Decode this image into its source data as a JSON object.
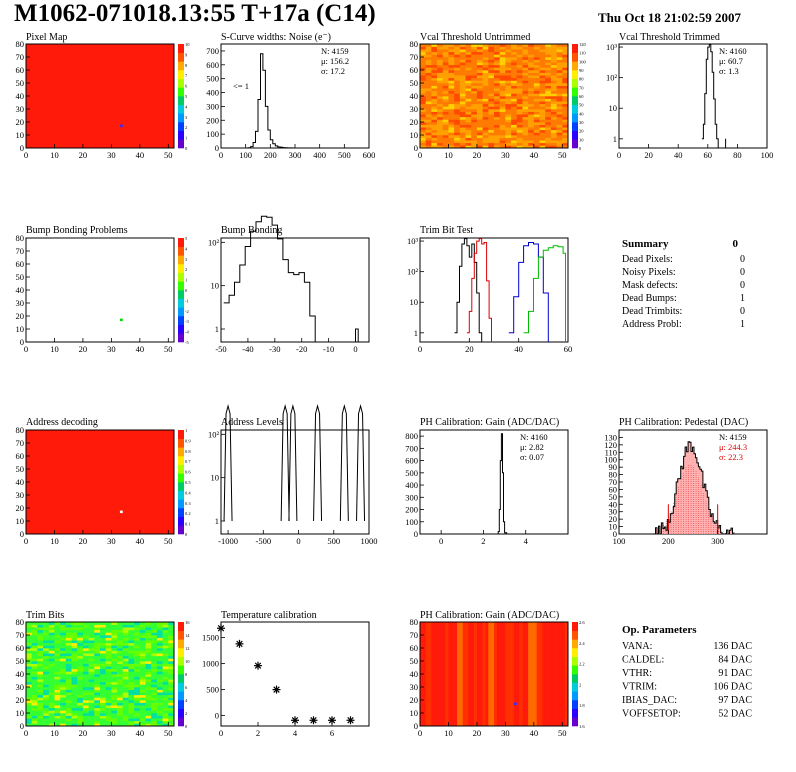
{
  "header": {
    "title": "M1062-071018.13:55 T+17a (C14)",
    "date": "Thu Oct 18 21:02:59 2007"
  },
  "colors": {
    "map_red": "#ff1a0a",
    "hist_black": "#000000",
    "trim_red": "#dd0000",
    "trim_blue": "#0000cc",
    "trim_green": "#00bb00",
    "stats_red": "#dd0000",
    "pedestal_fill": "#ffb0b0"
  },
  "summary": {
    "title": "Summary",
    "value": "0",
    "rows": [
      {
        "label": "Dead Pixels:",
        "value": "0"
      },
      {
        "label": "Noisy Pixels:",
        "value": "0"
      },
      {
        "label": "Mask defects:",
        "value": "0"
      },
      {
        "label": "Dead Bumps:",
        "value": "1"
      },
      {
        "label": "Dead Trimbits:",
        "value": "0"
      },
      {
        "label": "Address Probl:",
        "value": "1"
      }
    ]
  },
  "op_parameters": {
    "title": "Op. Parameters",
    "rows": [
      {
        "label": "VANA:",
        "value": "136 DAC"
      },
      {
        "label": "CALDEL:",
        "value": "84 DAC"
      },
      {
        "label": "VTHR:",
        "value": "91 DAC"
      },
      {
        "label": "VTRIM:",
        "value": "106 DAC"
      },
      {
        "label": "IBIAS_DAC:",
        "value": "97 DAC"
      },
      {
        "label": "VOFFSETOP:",
        "value": "52 DAC"
      }
    ]
  },
  "chart_data": [
    {
      "id": "pixel-map",
      "type": "heatmap",
      "title": "Pixel Map",
      "xlim": [
        0,
        52
      ],
      "ylim": [
        0,
        80
      ],
      "xticks": [
        "0",
        "10",
        "20",
        "30",
        "40",
        "50"
      ],
      "yticks": [
        "0",
        "10",
        "20",
        "30",
        "40",
        "50",
        "60",
        "70",
        "80"
      ],
      "zticks": [
        "0",
        "1",
        "2",
        "3",
        "4",
        "5",
        "6",
        "7",
        "8",
        "9",
        "10"
      ],
      "fill": "uniform-red",
      "special_pixels": [
        {
          "x": 33,
          "y": 17,
          "color": "#3030ff"
        }
      ]
    },
    {
      "id": "scurve-noise",
      "type": "line",
      "title": "S-Curve widths: Noise (e⁻)",
      "xlim": [
        0,
        600
      ],
      "ylim": [
        0,
        750
      ],
      "xticks": [
        "0",
        "100",
        "200",
        "300",
        "400",
        "500",
        "600"
      ],
      "yticks": [
        "0",
        "100",
        "200",
        "300",
        "400",
        "500",
        "600",
        "700"
      ],
      "stats": [
        "N: 4159",
        "μ: 156.2",
        "σ: 17.2"
      ],
      "annotation": "<= 1",
      "x": [
        100,
        110,
        120,
        130,
        140,
        150,
        160,
        170,
        180,
        190,
        200,
        210,
        220,
        230,
        240,
        250,
        260,
        270,
        280,
        290
      ],
      "values": [
        0,
        2,
        10,
        40,
        120,
        350,
        680,
        560,
        300,
        130,
        60,
        30,
        15,
        8,
        5,
        3,
        2,
        1,
        1,
        0
      ]
    },
    {
      "id": "vcal-untrimmed",
      "type": "heatmap",
      "title": "Vcal Threshold Untrimmed",
      "xlim": [
        0,
        52
      ],
      "ylim": [
        0,
        80
      ],
      "xticks": [
        "0",
        "10",
        "20",
        "30",
        "40",
        "50"
      ],
      "yticks": [
        "0",
        "10",
        "20",
        "30",
        "40",
        "50",
        "60",
        "70",
        "80"
      ],
      "zticks": [
        "0",
        "10",
        "20",
        "30",
        "40",
        "50",
        "60",
        "70",
        "80",
        "90",
        "100",
        "110",
        "120"
      ],
      "fill": "orange-noise"
    },
    {
      "id": "vcal-trimmed",
      "type": "line",
      "log": true,
      "title": "Vcal Threshold Trimmed",
      "xlim": [
        0,
        100
      ],
      "xticks": [
        "0",
        "20",
        "40",
        "60",
        "80",
        "100"
      ],
      "yticks": [
        "1",
        "10",
        "10²",
        "10³"
      ],
      "stats": [
        "N: 4160",
        "μ: 60.7",
        "σ: 1.3"
      ],
      "x": [
        56,
        57,
        58,
        59,
        60,
        61,
        62,
        63,
        64,
        65,
        66,
        67,
        72
      ],
      "values": [
        1,
        3,
        30,
        400,
        1000,
        1200,
        700,
        150,
        20,
        3,
        1,
        0,
        1
      ]
    },
    {
      "id": "bump-bonding-problems",
      "type": "heatmap",
      "title": "Bump Bonding Problems",
      "xlim": [
        0,
        52
      ],
      "ylim": [
        0,
        80
      ],
      "xticks": [
        "0",
        "10",
        "20",
        "30",
        "40",
        "50"
      ],
      "yticks": [
        "0",
        "10",
        "20",
        "30",
        "40",
        "50",
        "60",
        "70",
        "80"
      ],
      "zticks": [
        "-5",
        "-4",
        "-3",
        "-2",
        "-1",
        "0",
        "1",
        "2",
        "3",
        "4",
        "5"
      ],
      "fill": "white",
      "special_pixels": [
        {
          "x": 33,
          "y": 17,
          "color": "#00dd00"
        }
      ]
    },
    {
      "id": "bump-bonding",
      "type": "line",
      "log": true,
      "title": "Bump Bonding",
      "xlim": [
        -50,
        5
      ],
      "xticks": [
        "-50",
        "-40",
        "-30",
        "-20",
        "-10",
        "0"
      ],
      "yticks": [
        "1",
        "10",
        "10²"
      ],
      "x": [
        -49,
        -47,
        -45,
        -43,
        -41,
        -39,
        -37,
        -35,
        -33,
        -31,
        -29,
        -27,
        -25,
        -23,
        -21,
        -19,
        -17,
        -15,
        -13,
        -11,
        -9,
        -7,
        -5,
        -3,
        -1,
        0,
        1
      ],
      "values": [
        4,
        6,
        12,
        30,
        80,
        180,
        300,
        400,
        380,
        250,
        120,
        40,
        20,
        18,
        20,
        12,
        2,
        0,
        0,
        0,
        0,
        0,
        0,
        0,
        0,
        1,
        0
      ]
    },
    {
      "id": "trim-bit-test",
      "type": "line",
      "log": true,
      "title": "Trim Bit Test",
      "xlim": [
        0,
        60
      ],
      "xticks": [
        "0",
        "20",
        "40",
        "60"
      ],
      "yticks": [
        "1",
        "10",
        "10²",
        "10³"
      ],
      "series": [
        {
          "color": "#000000",
          "x": [
            14,
            15,
            16,
            17,
            18,
            19,
            20,
            21,
            22,
            23,
            24,
            25
          ],
          "values": [
            1,
            10,
            150,
            800,
            1200,
            700,
            300,
            800,
            200,
            20,
            1,
            0
          ]
        },
        {
          "color": "#dd0000",
          "x": [
            19,
            20,
            21,
            22,
            23,
            24,
            25,
            26,
            27,
            28,
            29
          ],
          "values": [
            1,
            5,
            60,
            400,
            1000,
            1200,
            800,
            900,
            50,
            3,
            0
          ]
        },
        {
          "color": "#0000cc",
          "x": [
            36,
            38,
            40,
            42,
            44,
            46,
            48,
            50,
            52
          ],
          "values": [
            1,
            15,
            200,
            700,
            900,
            800,
            300,
            20,
            0
          ]
        },
        {
          "color": "#00bb00",
          "x": [
            42,
            44,
            46,
            48,
            50,
            52,
            54,
            56,
            58,
            59
          ],
          "values": [
            1,
            5,
            60,
            300,
            500,
            600,
            700,
            650,
            400,
            0
          ]
        }
      ]
    },
    {
      "id": "address-decoding",
      "type": "heatmap",
      "title": "Address decoding",
      "xlim": [
        0,
        52
      ],
      "ylim": [
        0,
        80
      ],
      "xticks": [
        "0",
        "10",
        "20",
        "30",
        "40",
        "50"
      ],
      "yticks": [
        "0",
        "10",
        "20",
        "30",
        "40",
        "50",
        "60",
        "70",
        "80"
      ],
      "zticks": [
        "0",
        "0.1",
        "0.2",
        "0.3",
        "0.4",
        "0.5",
        "0.6",
        "0.7",
        "0.8",
        "0.9",
        "1"
      ],
      "fill": "uniform-red",
      "special_pixels": [
        {
          "x": 33,
          "y": 17,
          "color": "#ffffff"
        }
      ]
    },
    {
      "id": "address-levels",
      "type": "line",
      "log": true,
      "title": "Address Levels",
      "xlim": [
        -1100,
        1000
      ],
      "xticks": [
        "-1000",
        "-500",
        "0",
        "500",
        "1000"
      ],
      "yticks": [
        "1",
        "10",
        "10²"
      ],
      "peaks": [
        -1000,
        -190,
        -80,
        270,
        650,
        880
      ]
    },
    {
      "id": "ph-gain",
      "type": "line",
      "title": "PH Calibration: Gain (ADC/DAC)",
      "xlim": [
        -1,
        6
      ],
      "ylim": [
        0,
        850
      ],
      "xticks": [
        "0",
        "2",
        "4"
      ],
      "yticks": [
        "0",
        "100",
        "200",
        "300",
        "400",
        "500",
        "600",
        "700",
        "800"
      ],
      "stats": [
        "N: 4160",
        "μ: 2.82",
        "σ: 0.07"
      ],
      "x": [
        2.6,
        2.7,
        2.75,
        2.8,
        2.85,
        2.9,
        2.95,
        3.0,
        3.1
      ],
      "values": [
        0,
        20,
        200,
        600,
        820,
        500,
        100,
        10,
        0
      ]
    },
    {
      "id": "ph-pedestal",
      "type": "line",
      "title": "PH Calibration: Pedestal (DAC)",
      "xlim": [
        100,
        400
      ],
      "ylim": [
        0,
        140
      ],
      "xticks": [
        "100",
        "200",
        "300"
      ],
      "yticks": [
        "0",
        "10",
        "20",
        "30",
        "40",
        "50",
        "60",
        "70",
        "80",
        "90",
        "100",
        "110",
        "120",
        "130"
      ],
      "stats": [
        "N: 4159",
        "μ: 244.3",
        "σ: 22.3"
      ],
      "fit_range": [
        200,
        300
      ]
    },
    {
      "id": "trim-bits",
      "type": "heatmap",
      "title": "Trim Bits",
      "xlim": [
        0,
        52
      ],
      "ylim": [
        0,
        80
      ],
      "xticks": [
        "0",
        "10",
        "20",
        "30",
        "40",
        "50"
      ],
      "yticks": [
        "0",
        "10",
        "20",
        "30",
        "40",
        "50",
        "60",
        "70",
        "80"
      ],
      "zticks": [
        "0",
        "2",
        "4",
        "6",
        "8",
        "10",
        "12",
        "14",
        "16"
      ],
      "fill": "green-noise"
    },
    {
      "id": "temperature-calibration",
      "type": "scatter",
      "title": "Temperature calibration",
      "xlim": [
        0,
        8
      ],
      "ylim": [
        -200,
        1800
      ],
      "xticks": [
        "0",
        "2",
        "4",
        "6"
      ],
      "yticks": [
        "0",
        "500",
        "1000",
        "1500"
      ],
      "x": [
        0,
        1,
        2,
        3,
        4,
        5,
        6,
        7
      ],
      "values": [
        1680,
        1380,
        960,
        500,
        -90,
        -90,
        -90,
        -90
      ]
    },
    {
      "id": "ph-gain-map",
      "type": "heatmap",
      "title": "PH Calibration: Gain (ADC/DAC)",
      "xlim": [
        0,
        52
      ],
      "ylim": [
        0,
        80
      ],
      "xticks": [
        "0",
        "10",
        "20",
        "30",
        "40",
        "50"
      ],
      "yticks": [
        "0",
        "10",
        "20",
        "30",
        "40",
        "50",
        "60",
        "70",
        "80"
      ],
      "zticks": [
        "1.6",
        "1.8",
        "2",
        "2.2",
        "2.4",
        "2.6"
      ],
      "fill": "red-columns",
      "special_pixels": [
        {
          "x": 33,
          "y": 17,
          "color": "#3030ff"
        }
      ]
    }
  ]
}
